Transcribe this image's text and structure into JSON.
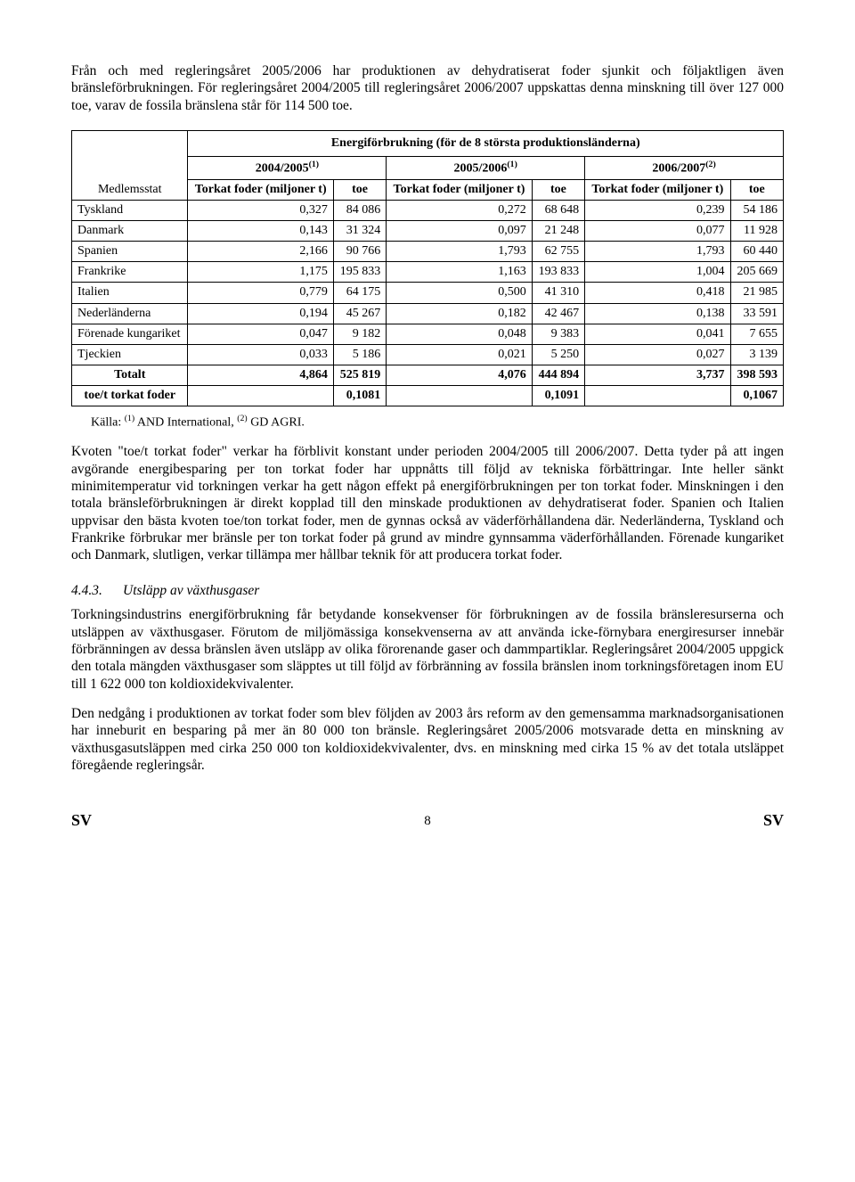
{
  "para1": "Från och med regleringsåret 2005/2006 har produktionen av dehydratiserat foder sjunkit och följaktligen även bränsleförbrukningen. För regleringsåret 2004/2005 till regleringsåret 2006/2007 uppskattas denna minskning till över 127 000 toe, varav de fossila bränslena står för 114 500 toe.",
  "table": {
    "title": "Energiförbrukning (för de 8 största produktionsländerna)",
    "year_headers": [
      "2004/2005",
      "2005/2006",
      "2006/2007"
    ],
    "year_sups": [
      "(1)",
      "(1)",
      "(2)"
    ],
    "member_state_label": "Medlemsstat",
    "sub_tf": "Torkat foder (miljoner t)",
    "sub_toe": "toe",
    "rows": [
      {
        "name": "Tyskland",
        "tf1": "0,327",
        "toe1": "84 086",
        "tf2": "0,272",
        "toe2": "68 648",
        "tf3": "0,239",
        "toe3": "54 186"
      },
      {
        "name": "Danmark",
        "tf1": "0,143",
        "toe1": "31 324",
        "tf2": "0,097",
        "toe2": "21 248",
        "tf3": "0,077",
        "toe3": "11 928"
      },
      {
        "name": "Spanien",
        "tf1": "2,166",
        "toe1": "90 766",
        "tf2": "1,793",
        "toe2": "62 755",
        "tf3": "1,793",
        "toe3": "60 440"
      },
      {
        "name": "Frankrike",
        "tf1": "1,175",
        "toe1": "195 833",
        "tf2": "1,163",
        "toe2": "193 833",
        "tf3": "1,004",
        "toe3": "205 669"
      },
      {
        "name": "Italien",
        "tf1": "0,779",
        "toe1": "64 175",
        "tf2": "0,500",
        "toe2": "41 310",
        "tf3": "0,418",
        "toe3": "21 985"
      },
      {
        "name": "Nederländerna",
        "tf1": "0,194",
        "toe1": "45 267",
        "tf2": "0,182",
        "toe2": "42 467",
        "tf3": "0,138",
        "toe3": "33 591"
      },
      {
        "name": "Förenade kungariket",
        "tf1": "0,047",
        "toe1": "9 182",
        "tf2": "0,048",
        "toe2": "9 383",
        "tf3": "0,041",
        "toe3": "7 655"
      },
      {
        "name": "Tjeckien",
        "tf1": "0,033",
        "toe1": "5 186",
        "tf2": "0,021",
        "toe2": "5 250",
        "tf3": "0,027",
        "toe3": "3 139"
      }
    ],
    "total": {
      "label": "Totalt",
      "tf1": "4,864",
      "toe1": "525 819",
      "tf2": "4,076",
      "toe2": "444 894",
      "tf3": "3,737",
      "toe3": "398 593"
    },
    "ratio": {
      "label": "toe/t torkat foder",
      "v1": "0,1081",
      "v2": "0,1091",
      "v3": "0,1067"
    }
  },
  "source_prefix": "Källa: ",
  "source_mid1": " AND International, ",
  "source_mid2": " GD AGRI.",
  "source_sup1": "(1)",
  "source_sup2": "(2)",
  "para2": "Kvoten \"toe/t torkat foder\" verkar ha förblivit konstant under perioden 2004/2005 till 2006/2007. Detta tyder på att ingen avgörande energibesparing per ton torkat foder har uppnåtts till följd av tekniska förbättringar. Inte heller sänkt minimitemperatur vid torkningen verkar ha gett någon effekt på energiförbrukningen per ton torkat foder. Minskningen i den totala bränsleförbrukningen är direkt kopplad till den minskade produktionen av dehydratiserat foder. Spanien och Italien uppvisar den bästa kvoten toe/ton torkat foder, men de gynnas också av väderförhållandena där. Nederländerna, Tyskland och Frankrike förbrukar mer bränsle per ton torkat foder på grund av mindre gynnsamma väderförhållanden. Förenade kungariket och Danmark, slutligen, verkar tillämpa mer hållbar teknik för att producera torkat foder.",
  "section": {
    "num": "4.4.3.",
    "title": "Utsläpp av växthusgaser"
  },
  "para3": "Torkningsindustrins energiförbrukning får betydande konsekvenser för förbrukningen av de fossila bränsleresurserna och utsläppen av växthusgaser. Förutom de miljömässiga konsekvenserna av att använda icke-förnybara energiresurser innebär förbränningen av dessa bränslen även utsläpp av olika förorenande gaser och dammpartiklar. Regleringsåret 2004/2005 uppgick den totala mängden växthusgaser som släpptes ut till följd av förbränning av fossila bränslen inom torkningsföretagen inom EU till 1 622 000 ton koldioxidekvivalenter.",
  "para4": "Den nedgång i produktionen av torkat foder som blev följden av 2003 års reform av den gemensamma marknadsorganisationen har inneburit en besparing på mer än 80 000 ton bränsle. Regleringsåret 2005/2006 motsvarade detta en minskning av växthusgasutsläppen med cirka 250 000 ton koldioxidekvivalenter, dvs. en minskning med cirka 15 % av det totala utsläppet föregående regleringsår.",
  "footer": {
    "left": "SV",
    "page": "8",
    "right": "SV"
  }
}
